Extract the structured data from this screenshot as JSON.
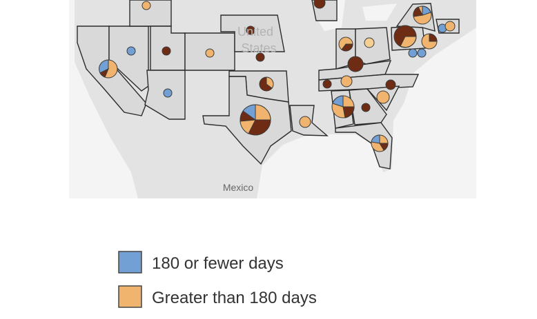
{
  "map": {
    "country_label_lines": [
      "United",
      "States"
    ],
    "neighbor_label": "Mexico"
  },
  "legend": {
    "items": [
      {
        "label": "180 or fewer days",
        "color": "#729fd4"
      },
      {
        "label": "Greater than 180 days",
        "color": "#f1b46e"
      }
    ]
  }
}
